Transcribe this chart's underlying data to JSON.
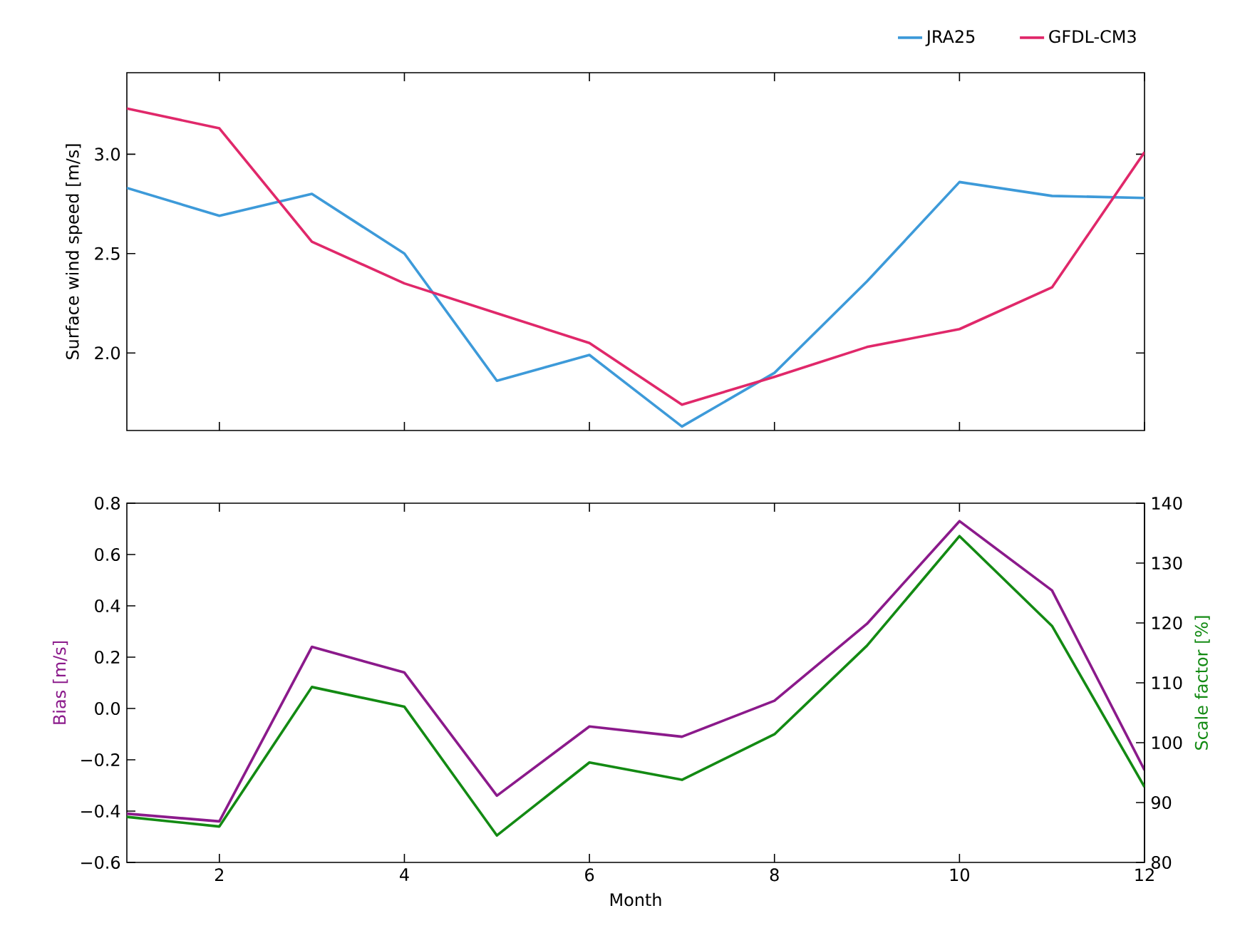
{
  "chart_data": [
    {
      "type": "line",
      "ylabel": "Surface wind speed [m/s]",
      "x": [
        1,
        2,
        3,
        4,
        5,
        6,
        7,
        8,
        9,
        10,
        11,
        12
      ],
      "xlim": [
        1,
        12
      ],
      "xticks": [
        2,
        4,
        6,
        8,
        10,
        12
      ],
      "ylim": [
        1.61,
        3.41
      ],
      "yticks": [
        {
          "value": 2,
          "label": "2.0"
        },
        {
          "value": 2.5,
          "label": "2.5"
        },
        {
          "value": 3,
          "label": "3.0"
        }
      ],
      "tick_labels": "y",
      "legend": "top right",
      "series": [
        {
          "name": "JRA25",
          "color": "#3d9ad9",
          "values": [
            2.83,
            2.69,
            2.8,
            2.5,
            1.86,
            1.99,
            1.63,
            1.9,
            2.36,
            2.86,
            2.79,
            2.78
          ]
        },
        {
          "name": "GFDL-CM3",
          "color": "#e0286a",
          "values": [
            3.23,
            3.13,
            2.56,
            2.35,
            2.2,
            2.05,
            1.74,
            1.88,
            2.03,
            2.12,
            2.33,
            3.01
          ]
        }
      ]
    },
    {
      "type": "line",
      "xlabel": "Month",
      "ylabel": "Bias [m/s]",
      "y2label": "Scale factor [%]",
      "x": [
        1,
        2,
        3,
        4,
        5,
        6,
        7,
        8,
        9,
        10,
        11,
        12
      ],
      "xlim": [
        1,
        12
      ],
      "xticks": [
        2,
        4,
        6,
        8,
        10,
        12
      ],
      "ylim": [
        -0.6,
        0.8
      ],
      "yticks": [
        {
          "value": -0.6,
          "label": "−0.6"
        },
        {
          "value": -0.4,
          "label": "−0.4"
        },
        {
          "value": -0.2,
          "label": "−0.2"
        },
        {
          "value": 0,
          "label": "0.0"
        },
        {
          "value": 0.2,
          "label": "0.2"
        },
        {
          "value": 0.4,
          "label": "0.4"
        },
        {
          "value": 0.6,
          "label": "0.6"
        },
        {
          "value": 0.8,
          "label": "0.8"
        }
      ],
      "y2lim": [
        80,
        140
      ],
      "y2ticks": [
        80,
        90,
        100,
        110,
        120,
        130,
        140
      ],
      "series": [
        {
          "color": "#8b1a8b",
          "values": [
            -0.41,
            -0.44,
            0.24,
            0.14,
            -0.34,
            -0.07,
            -0.11,
            0.03,
            0.33,
            0.73,
            0.46,
            -0.24
          ]
        },
        {
          "color": "#138a13",
          "axis": "y2",
          "values": [
            87.6,
            86.0,
            109.3,
            106.0,
            84.5,
            96.7,
            93.8,
            101.4,
            116.2,
            134.5,
            119.5,
            92.6
          ]
        }
      ]
    }
  ]
}
